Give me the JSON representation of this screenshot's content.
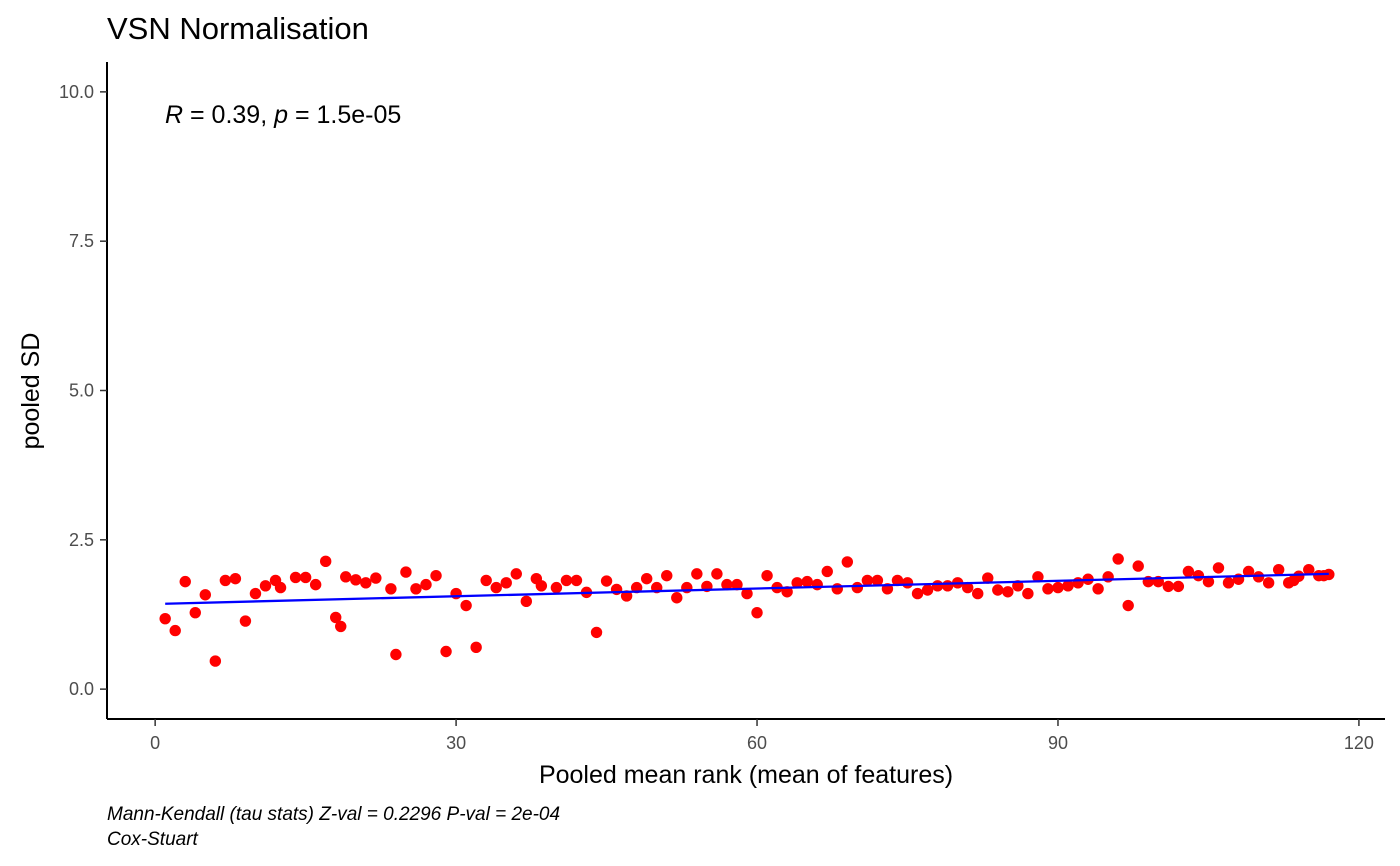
{
  "chart_data": {
    "type": "scatter",
    "title": "VSN Normalisation",
    "xlabel": "Pooled mean rank (mean of features)",
    "ylabel": "pooled SD",
    "xlim": [
      -4.8,
      122.6
    ],
    "ylim": [
      -0.5,
      10.5
    ],
    "x_ticks": [
      0,
      30,
      60,
      90,
      120
    ],
    "x_tick_labels": [
      "0",
      "30",
      "60",
      "90",
      "120"
    ],
    "y_ticks": [
      0,
      2.5,
      5,
      7.5,
      10
    ],
    "y_tick_labels": [
      "0.0",
      "2.5",
      "5.0",
      "7.5",
      "10.0"
    ],
    "grid": false,
    "point_color": "#ff0000",
    "fit_color": "#0000ff",
    "fit_line": {
      "x": [
        1,
        117
      ],
      "y": [
        1.43,
        1.93
      ]
    },
    "annotation": {
      "r_symbol": "R",
      "r_text": " = 0.39, ",
      "p_symbol": "p",
      "p_text": " = 1.5e-05"
    },
    "caption_lines": [
      "Mann-Kendall (tau stats) Z-val = 0.2296 P-val = 2e-04",
      "Cox-Stuart"
    ],
    "points": {
      "x": [
        1,
        2,
        3,
        4,
        5,
        6,
        7,
        8,
        9,
        10,
        11,
        12,
        12.5,
        14,
        15,
        16,
        17,
        18,
        18.5,
        19,
        20,
        21,
        22,
        23.5,
        24,
        25,
        26,
        27,
        28,
        29,
        30,
        31,
        32,
        33,
        34,
        35,
        36,
        37,
        38,
        38.5,
        40,
        41,
        42,
        43,
        44,
        45,
        46,
        47,
        48,
        49,
        50,
        51,
        52,
        53,
        54,
        55,
        56,
        57,
        58,
        59,
        60,
        61,
        62,
        63,
        64,
        65,
        66,
        67,
        68,
        69,
        70,
        71,
        72,
        73,
        74,
        75,
        76,
        77,
        78,
        79,
        80,
        81,
        82,
        83,
        84,
        85,
        86,
        87,
        88,
        89,
        90,
        91,
        92,
        93,
        94,
        95,
        96,
        97,
        98,
        99,
        100,
        101,
        102,
        103,
        104,
        105,
        106,
        107,
        108,
        109,
        110,
        111,
        112,
        113,
        113.5,
        114,
        115,
        116,
        116.5,
        117
      ],
      "y": [
        1.18,
        0.98,
        1.8,
        1.28,
        1.58,
        0.47,
        1.82,
        1.85,
        1.14,
        1.6,
        1.73,
        1.82,
        1.7,
        1.87,
        1.87,
        1.75,
        2.14,
        1.2,
        1.05,
        1.88,
        1.83,
        1.78,
        1.86,
        1.68,
        0.58,
        1.96,
        1.68,
        1.75,
        1.9,
        0.63,
        1.6,
        1.4,
        0.7,
        1.82,
        1.7,
        1.78,
        1.93,
        1.47,
        1.85,
        1.73,
        1.7,
        1.82,
        1.82,
        1.62,
        0.95,
        1.81,
        1.67,
        1.56,
        1.7,
        1.85,
        1.7,
        1.9,
        1.53,
        1.7,
        1.93,
        1.72,
        1.93,
        1.75,
        1.75,
        1.6,
        1.28,
        1.9,
        1.7,
        1.63,
        1.78,
        1.8,
        1.75,
        1.97,
        1.68,
        2.13,
        1.7,
        1.82,
        1.82,
        1.68,
        1.82,
        1.78,
        1.6,
        1.66,
        1.73,
        1.73,
        1.78,
        1.7,
        1.6,
        1.86,
        1.66,
        1.63,
        1.73,
        1.6,
        1.88,
        1.68,
        1.7,
        1.73,
        1.78,
        1.84,
        1.68,
        1.88,
        2.18,
        1.4,
        2.06,
        1.8,
        1.8,
        1.72,
        1.72,
        1.97,
        1.9,
        1.8,
        2.03,
        1.78,
        1.84,
        1.97,
        1.88,
        1.78,
        2.0,
        1.78,
        1.82,
        1.89,
        2.0,
        1.9,
        1.9,
        1.92
      ]
    }
  }
}
